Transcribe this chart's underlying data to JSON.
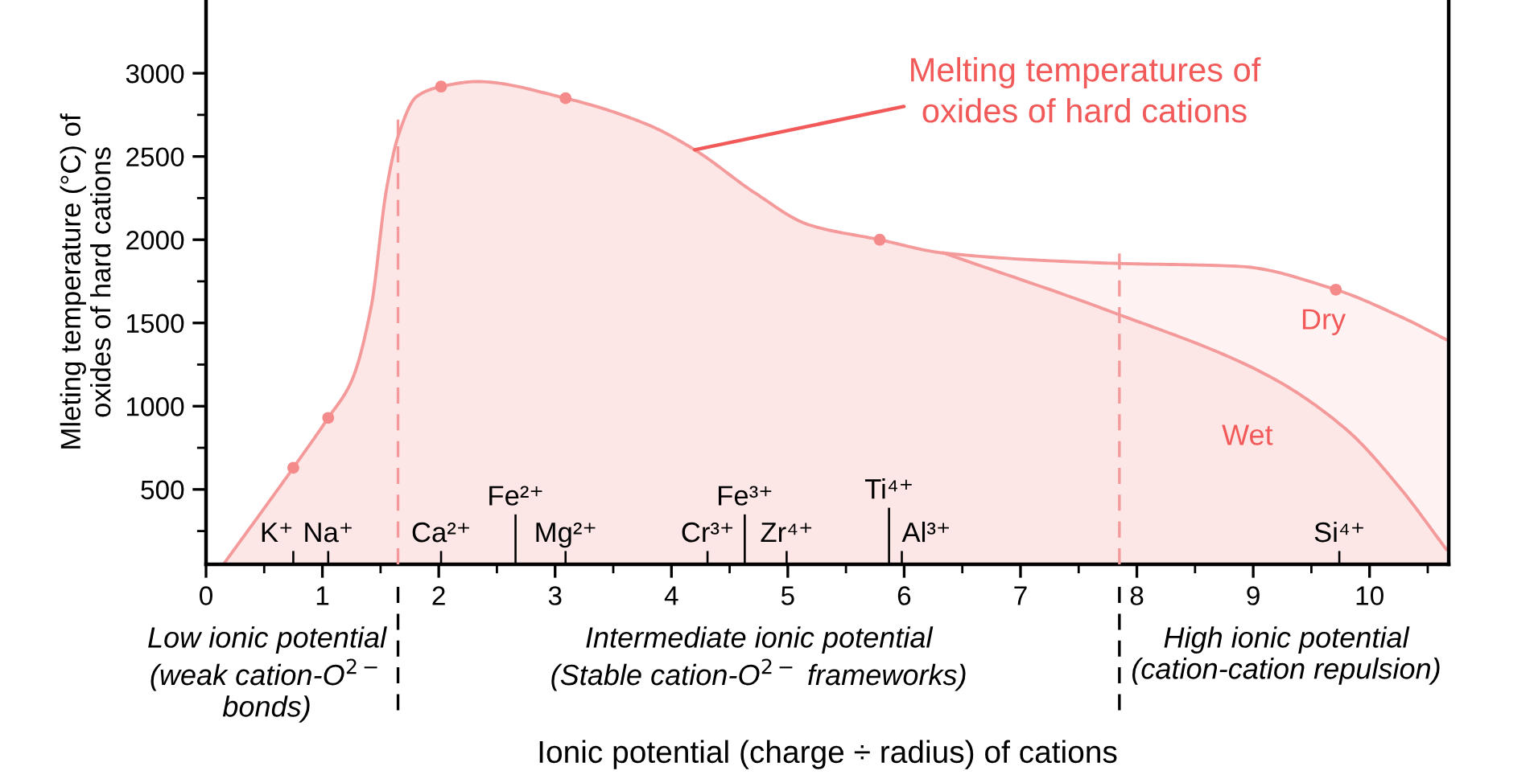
{
  "chart_data": {
    "type": "area",
    "xlabel": "Ionic potential (charge ÷ radius) of cations",
    "ylabel": "Mleting temperature (°C) of\noxides of hard cations",
    "xlim": [
      0,
      10.68
    ],
    "ylim": [
      50,
      3440
    ],
    "xticks": [
      0,
      1,
      2,
      3,
      4,
      5,
      6,
      7,
      8,
      9,
      10
    ],
    "yticks": [
      500,
      1000,
      1500,
      2000,
      2500,
      3000
    ],
    "grid": false,
    "legend": false,
    "series": [
      {
        "name": "Dry",
        "color": "#f59a9a",
        "x": [
          0.15,
          0.75,
          1.05,
          1.25,
          1.42,
          1.55,
          1.65,
          1.81,
          2.02,
          2.33,
          3.09,
          3.8,
          4.2,
          4.72,
          5.18,
          5.79,
          6.34,
          7.73,
          8.88,
          9.71,
          10.26,
          10.66
        ],
        "values": [
          50,
          630,
          930,
          1150,
          1600,
          2300,
          2620,
          2860,
          2920,
          2950,
          2850,
          2690,
          2540,
          2280,
          2090,
          2000,
          1920,
          1860,
          1840,
          1700,
          1540,
          1400
        ]
      },
      {
        "name": "Wet",
        "color": "#f59a9a",
        "x": [
          6.34,
          7.77,
          9.11,
          9.8,
          10.26,
          10.66
        ],
        "values": [
          1920,
          1570,
          1190,
          860,
          510,
          140
        ]
      },
      {
        "type": "scatter",
        "marker": "circle",
        "color": "#f48a8a",
        "x": [
          0.75,
          1.05,
          2.02,
          3.09,
          5.79,
          9.71
        ],
        "values": [
          630,
          930,
          2920,
          2850,
          2000,
          1700
        ]
      },
      {
        "type": "bar",
        "color": "#000000",
        "x": [
          0.75,
          1.05,
          2.02,
          2.66,
          3.09,
          4.31,
          4.63,
          4.99,
          5.87,
          5.98,
          9.74
        ],
        "values": [
          130,
          130,
          130,
          350,
          130,
          130,
          350,
          130,
          390,
          130,
          130
        ]
      }
    ],
    "ref_lines": [
      {
        "axis": "x",
        "value": 1.65,
        "color": "#f59a9a",
        "line_style": "dashed"
      },
      {
        "axis": "x",
        "value": 7.85,
        "color": "#f59a9a",
        "line_style": "dashed"
      }
    ],
    "annotations": [
      {
        "text": "Melting temperatures of\noxides of hard cations",
        "x": 4.2,
        "y": 2540
      },
      {
        "text": "K⁺",
        "x": 0.75,
        "y": 130
      },
      {
        "text": "Na⁺",
        "x": 1.05,
        "y": 130
      },
      {
        "text": "Ca²⁺",
        "x": 2.02,
        "y": 130
      },
      {
        "text": "Fe²⁺",
        "x": 2.66,
        "y": 350
      },
      {
        "text": "Mg²⁺",
        "x": 3.09,
        "y": 130
      },
      {
        "text": "Cr³⁺",
        "x": 4.31,
        "y": 130
      },
      {
        "text": "Fe³⁺",
        "x": 4.63,
        "y": 350
      },
      {
        "text": "Zr⁴⁺",
        "x": 4.99,
        "y": 130
      },
      {
        "text": "Ti⁴⁺",
        "x": 5.87,
        "y": 390
      },
      {
        "text": "Al³⁺",
        "x": 5.98,
        "y": 130
      },
      {
        "text": "Si⁴⁺",
        "x": 9.74,
        "y": 130
      },
      "Low ionic potential\n(weak cation-O$^{2−}$\nbonds)",
      "Intermediate ionic potential\n(Stable cation-O$^{2−}$ frameworks)",
      "High ionic potential\n(cation-cation repulsion)"
    ]
  }
}
